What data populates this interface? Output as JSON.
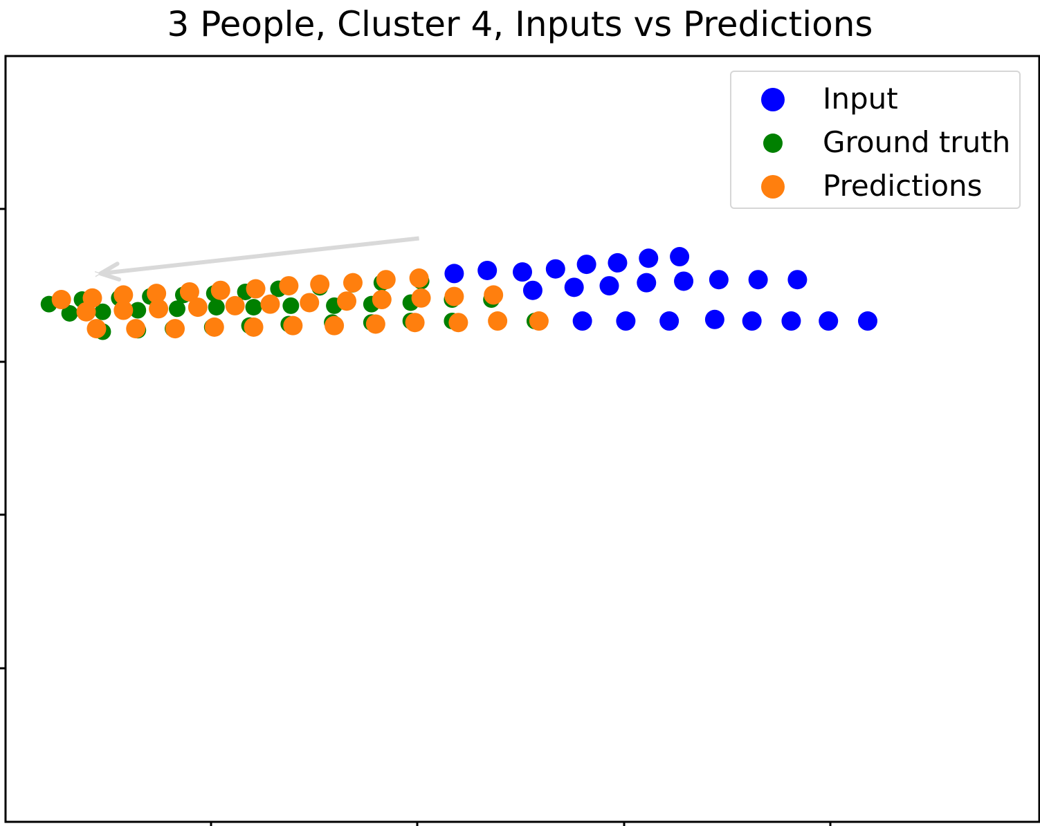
{
  "chart_data": {
    "type": "scatter",
    "title": "3 People, Cluster 4, Inputs vs Predictions",
    "xlabel": "",
    "ylabel": "",
    "xlim": [
      0,
      25
    ],
    "ylim": [
      0,
      25
    ],
    "grid": false,
    "legend_position": "top-right",
    "colors": {
      "Input": "#0000ff",
      "Ground truth": "#008000",
      "Predictions": "#ff7f0e",
      "arrow": "#d9d9d9"
    },
    "arrow": {
      "from": [
        10.0,
        19.05
      ],
      "to": [
        2.3,
        17.9
      ]
    },
    "series": [
      {
        "name": "Input",
        "marker_size": "medium",
        "points": [
          [
            10.85,
            17.9
          ],
          [
            11.65,
            18.0
          ],
          [
            12.5,
            17.95
          ],
          [
            13.3,
            18.05
          ],
          [
            14.05,
            18.2
          ],
          [
            14.8,
            18.25
          ],
          [
            15.55,
            18.4
          ],
          [
            16.3,
            18.45
          ],
          [
            12.75,
            17.35
          ],
          [
            13.75,
            17.45
          ],
          [
            14.6,
            17.5
          ],
          [
            15.5,
            17.6
          ],
          [
            16.4,
            17.65
          ],
          [
            17.25,
            17.7
          ],
          [
            18.2,
            17.7
          ],
          [
            19.15,
            17.7
          ],
          [
            13.95,
            16.35
          ],
          [
            15.0,
            16.35
          ],
          [
            16.05,
            16.35
          ],
          [
            17.15,
            16.4
          ],
          [
            18.05,
            16.35
          ],
          [
            19.0,
            16.35
          ],
          [
            19.9,
            16.35
          ],
          [
            20.85,
            16.35
          ]
        ]
      },
      {
        "name": "Ground truth",
        "marker_size": "small",
        "points": [
          [
            10.05,
            17.65
          ],
          [
            9.1,
            17.6
          ],
          [
            8.4,
            17.55
          ],
          [
            7.6,
            17.45
          ],
          [
            6.6,
            17.4
          ],
          [
            5.8,
            17.3
          ],
          [
            5.05,
            17.25
          ],
          [
            4.3,
            17.2
          ],
          [
            3.5,
            17.15
          ],
          [
            2.75,
            17.1
          ],
          [
            1.85,
            17.05
          ],
          [
            1.05,
            16.9
          ],
          [
            11.75,
            17.05
          ],
          [
            10.8,
            17.05
          ],
          [
            9.8,
            16.95
          ],
          [
            8.85,
            16.9
          ],
          [
            7.95,
            16.85
          ],
          [
            6.9,
            16.85
          ],
          [
            6.0,
            16.8
          ],
          [
            5.1,
            16.8
          ],
          [
            4.15,
            16.75
          ],
          [
            3.2,
            16.7
          ],
          [
            2.35,
            16.65
          ],
          [
            1.55,
            16.6
          ],
          [
            12.8,
            16.35
          ],
          [
            10.8,
            16.35
          ],
          [
            9.8,
            16.35
          ],
          [
            8.85,
            16.3
          ],
          [
            7.9,
            16.3
          ],
          [
            6.85,
            16.25
          ],
          [
            5.9,
            16.2
          ],
          [
            5.0,
            16.15
          ],
          [
            4.05,
            16.1
          ],
          [
            3.2,
            16.05
          ],
          [
            2.35,
            16.0
          ]
        ]
      },
      {
        "name": "Predictions",
        "marker_size": "medium",
        "points": [
          [
            10.0,
            17.75
          ],
          [
            9.2,
            17.7
          ],
          [
            8.4,
            17.6
          ],
          [
            7.6,
            17.55
          ],
          [
            6.85,
            17.5
          ],
          [
            6.05,
            17.4
          ],
          [
            5.2,
            17.35
          ],
          [
            4.45,
            17.3
          ],
          [
            3.65,
            17.25
          ],
          [
            2.85,
            17.2
          ],
          [
            2.1,
            17.1
          ],
          [
            1.35,
            17.05
          ],
          [
            11.8,
            17.2
          ],
          [
            10.85,
            17.15
          ],
          [
            10.05,
            17.1
          ],
          [
            9.1,
            17.05
          ],
          [
            8.25,
            17.0
          ],
          [
            7.35,
            16.95
          ],
          [
            6.4,
            16.9
          ],
          [
            5.55,
            16.85
          ],
          [
            4.65,
            16.8
          ],
          [
            3.7,
            16.75
          ],
          [
            2.85,
            16.7
          ],
          [
            1.95,
            16.65
          ],
          [
            12.9,
            16.35
          ],
          [
            11.9,
            16.35
          ],
          [
            10.95,
            16.3
          ],
          [
            9.9,
            16.3
          ],
          [
            8.95,
            16.25
          ],
          [
            7.95,
            16.2
          ],
          [
            6.95,
            16.2
          ],
          [
            6.0,
            16.15
          ],
          [
            5.05,
            16.15
          ],
          [
            4.1,
            16.1
          ],
          [
            3.15,
            16.1
          ],
          [
            2.2,
            16.1
          ]
        ]
      }
    ]
  }
}
